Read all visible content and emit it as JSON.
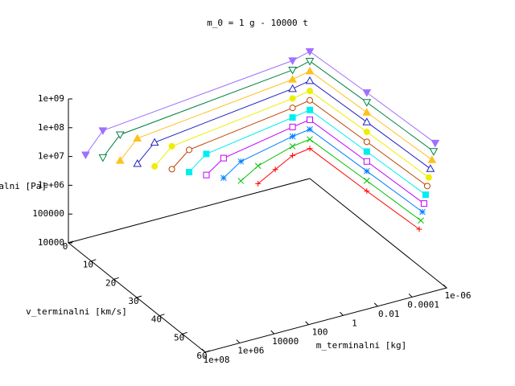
{
  "chart_data": {
    "type": "line3d",
    "title": "m_0 = 1 g - 10000 t",
    "xlabel": "v_terminalni [km/s]",
    "ylabel": "m_terminalni [kg]",
    "zlabel": "p_terminalni [Pa]",
    "xlim": [
      0,
      60
    ],
    "xticks": [
      0,
      10,
      20,
      30,
      40,
      50,
      60
    ],
    "ylim": [
      1e-06,
      100000000
    ],
    "ylog": true,
    "yticks": [
      {
        "value": 100000000,
        "label": "1e+08"
      },
      {
        "value": 1000000,
        "label": "1e+06"
      },
      10000,
      100,
      1,
      0.01,
      0.0001,
      {
        "value": 1e-06,
        "label": "1e-06"
      }
    ],
    "zlim": [
      10000,
      1000000000
    ],
    "zlog": true,
    "zticks": [
      10000,
      100000,
      {
        "value": 1000000,
        "label": "1e+06"
      },
      {
        "value": 10000000,
        "label": "1e+07"
      },
      {
        "value": 100000000,
        "label": "1e+08"
      },
      {
        "value": 1000000000,
        "label": "1e+09"
      }
    ],
    "series": [
      {
        "color": "#ff0000",
        "marker": "plus",
        "x": [
          0,
          0,
          0,
          0,
          25,
          48
        ],
        "y": [
          0.001,
          0.0001,
          1e-05,
          1e-06,
          1e-06,
          1e-06
        ],
        "z": [
          20000,
          43000,
          91000,
          110000,
          140000,
          190000
        ]
      },
      {
        "color": "#00c000",
        "marker": "cross",
        "x": [
          0,
          0,
          0,
          0,
          25,
          48.7
        ],
        "y": [
          0.01,
          0.001,
          1e-05,
          1e-06,
          1e-06,
          1e-06
        ],
        "z": [
          36000,
          83000,
          190000,
          230000,
          320000,
          420000
        ]
      },
      {
        "color": "#0080ff",
        "marker": "star",
        "x": [
          0,
          0,
          0,
          0,
          25,
          49.4
        ],
        "y": [
          0.1,
          0.01,
          1e-05,
          1e-06,
          1e-06,
          1e-06
        ],
        "z": [
          66000,
          170000,
          420000,
          510000,
          690000,
          930000
        ]
      },
      {
        "color": "#c000ff",
        "marker": "square",
        "x": [
          0,
          0,
          0,
          0,
          25,
          50.1
        ],
        "y": [
          1,
          0.1,
          1e-05,
          1e-06,
          1e-06,
          1e-06
        ],
        "z": [
          120000,
          320000,
          890000,
          1100000,
          1500000,
          2000000
        ]
      },
      {
        "color": "#00eeee",
        "marker": "square-filled",
        "x": [
          0,
          0,
          0,
          0,
          25,
          50.8
        ],
        "y": [
          10,
          1,
          1e-05,
          1e-06,
          1e-06,
          1e-06
        ],
        "z": [
          220000,
          650000,
          1900000,
          2400000,
          3300000,
          4500000
        ]
      },
      {
        "color": "#c04000",
        "marker": "circle",
        "x": [
          0,
          0,
          0,
          0,
          25,
          51.5
        ],
        "y": [
          100,
          10,
          1e-05,
          1e-06,
          1e-06,
          1e-06
        ],
        "z": [
          400000,
          1300000,
          4100000,
          5200000,
          7200000,
          10000000
        ]
      },
      {
        "color": "#eeee00",
        "marker": "circle-filled",
        "x": [
          0,
          0,
          0,
          0,
          25,
          52.2
        ],
        "y": [
          1000,
          100,
          1e-05,
          1e-06,
          1e-06,
          1e-06
        ],
        "z": [
          720000,
          2500000,
          8700000,
          11000000,
          16000000,
          22000000
        ]
      },
      {
        "color": "#2020c0",
        "marker": "triangle",
        "x": [
          0,
          0,
          0,
          0,
          25,
          52.9
        ],
        "y": [
          10000,
          1000,
          1e-05,
          1e-06,
          1e-06,
          1e-06
        ],
        "z": [
          1300000,
          4900000,
          19000000,
          25000000,
          35000000,
          49000000
        ]
      },
      {
        "color": "#ffc020",
        "marker": "triangle-filled",
        "x": [
          0,
          0,
          0,
          0,
          25,
          53.6
        ],
        "y": [
          100000,
          10000,
          1e-05,
          1e-06,
          1e-06,
          1e-06
        ],
        "z": [
          2400000,
          9800000,
          40000000,
          54000000,
          76000000,
          110000000
        ]
      },
      {
        "color": "#008040",
        "marker": "down",
        "x": [
          0,
          0,
          0,
          0,
          25,
          54.3
        ],
        "y": [
          1000000,
          100000,
          1e-05,
          1e-06,
          1e-06,
          1e-06
        ],
        "z": [
          4400000,
          19000000,
          85000000,
          120000000,
          170000000,
          240000000
        ]
      },
      {
        "color": "#a070ff",
        "marker": "down-filled",
        "x": [
          0,
          0,
          0,
          0,
          25,
          55
        ],
        "y": [
          10000000,
          1000000,
          1e-05,
          1e-06,
          1e-06,
          1e-06
        ],
        "z": [
          7900000,
          38000000,
          180000000,
          260000000,
          370000000,
          520000000
        ]
      }
    ]
  }
}
